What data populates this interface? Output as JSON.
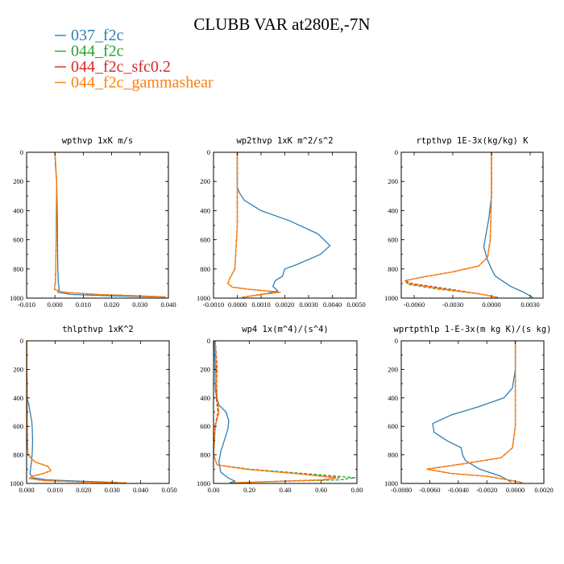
{
  "title": "CLUBB VAR at280E,-7N",
  "legend": [
    {
      "label": "037_f2c",
      "color": "#2e7fb5",
      "dash": "solid"
    },
    {
      "label": "044_f2c",
      "color": "#2ca02c",
      "dash": "dashed"
    },
    {
      "label": "044_f2c_sfc0.2",
      "color": "#d62728",
      "dash": "dashed"
    },
    {
      "label": "044_f2c_gammashear",
      "color": "#ff7f0e",
      "dash": "solid"
    }
  ],
  "chart_data": [
    {
      "type": "line",
      "title": "wpthvp  1xK m/s",
      "xlim": [
        -0.01,
        0.04
      ],
      "ylim": [
        0,
        1000
      ],
      "y_inverted": true,
      "xticks": [
        "-0.010",
        "0.000",
        "0.010",
        "0.020",
        "0.030",
        "0.040"
      ],
      "xtick_values": [
        -0.01,
        0.0,
        0.01,
        0.02,
        0.03,
        0.04
      ],
      "yticks": [
        "0",
        "200",
        "400",
        "600",
        "800",
        "1000"
      ],
      "series": [
        {
          "name": "037_f2c",
          "x": [
            0.0,
            0.0002,
            0.0006,
            0.0008,
            0.0009,
            0.001,
            0.0012,
            0.0015,
            0.001,
            0.006,
            0.02,
            0.038
          ],
          "y": [
            0,
            100,
            200,
            400,
            600,
            800,
            900,
            940,
            960,
            975,
            985,
            992
          ]
        },
        {
          "name": "044_f2c",
          "x": [
            0.0,
            0.0003,
            0.0006,
            0.0005,
            0.0004,
            0.0003,
            0.0001,
            -0.0002,
            0.003,
            0.015,
            0.03,
            0.039
          ],
          "y": [
            0,
            100,
            200,
            400,
            600,
            800,
            900,
            940,
            960,
            975,
            985,
            992
          ]
        },
        {
          "name": "044_f2c_sfc0.2",
          "x": [
            0.0,
            0.0003,
            0.0006,
            0.0005,
            0.0004,
            0.0003,
            0.0001,
            -0.0002,
            0.003,
            0.015,
            0.03,
            0.039
          ],
          "y": [
            0,
            100,
            200,
            400,
            600,
            800,
            900,
            940,
            960,
            975,
            985,
            992
          ]
        },
        {
          "name": "044_f2c_gammashear",
          "x": [
            0.0,
            0.0003,
            0.0006,
            0.0005,
            0.0004,
            0.0003,
            0.0001,
            -0.0002,
            0.003,
            0.015,
            0.03,
            0.039
          ],
          "y": [
            0,
            100,
            200,
            400,
            600,
            800,
            900,
            940,
            960,
            975,
            985,
            992
          ]
        }
      ]
    },
    {
      "type": "line",
      "title": "wp2thvp  1xK m^2/s^2",
      "xlim": [
        -0.001,
        0.005
      ],
      "ylim": [
        0,
        1000
      ],
      "y_inverted": true,
      "xticks": [
        "-0.0010",
        "0.0000",
        "0.0010",
        "0.0020",
        "0.0030",
        "0.0040",
        "0.0050"
      ],
      "xtick_values": [
        -0.001,
        0.0,
        0.001,
        0.002,
        0.003,
        0.004,
        0.005
      ],
      "yticks": [
        "0",
        "200",
        "400",
        "600",
        "800",
        "1000"
      ],
      "series": [
        {
          "name": "037_f2c",
          "x": [
            0.0,
            0.0,
            0.0,
            0.0001,
            0.0003,
            0.001,
            0.0022,
            0.0034,
            0.0039,
            0.0035,
            0.0025,
            0.002,
            0.0019,
            0.0016,
            0.0015,
            0.0017,
            0.0012,
            0.0006,
            0.0002
          ],
          "y": [
            0,
            150,
            240,
            280,
            330,
            400,
            470,
            560,
            640,
            700,
            770,
            800,
            850,
            880,
            920,
            950,
            970,
            985,
            995
          ]
        },
        {
          "name": "044_f2c",
          "x": [
            0.0,
            0.0,
            0.0,
            -0.0001,
            -0.0003,
            -0.0004,
            -0.0002,
            0.0005,
            0.0012,
            0.0018,
            0.001,
            0.0002
          ],
          "y": [
            0,
            200,
            500,
            800,
            860,
            900,
            925,
            940,
            950,
            960,
            975,
            995
          ]
        },
        {
          "name": "044_f2c_sfc0.2",
          "x": [
            0.0,
            0.0,
            0.0,
            -0.0001,
            -0.0003,
            -0.0004,
            -0.0002,
            0.0005,
            0.0012,
            0.0018,
            0.001,
            0.0002
          ],
          "y": [
            0,
            200,
            500,
            800,
            860,
            900,
            925,
            940,
            950,
            960,
            975,
            995
          ]
        },
        {
          "name": "044_f2c_gammashear",
          "x": [
            0.0,
            0.0,
            0.0,
            -0.0001,
            -0.0003,
            -0.0004,
            -0.0002,
            0.0005,
            0.0012,
            0.0018,
            0.001,
            0.0002
          ],
          "y": [
            0,
            200,
            500,
            800,
            860,
            900,
            925,
            940,
            950,
            960,
            975,
            995
          ]
        }
      ]
    },
    {
      "type": "line",
      "title": "rtpthvp  1E-3x(kg/kg) K",
      "xlim": [
        -0.007,
        0.004
      ],
      "ylim": [
        0,
        1000
      ],
      "y_inverted": true,
      "xticks": [
        "-0.0060",
        "-0.0030",
        "0.0000",
        "0.0030"
      ],
      "xtick_values": [
        -0.006,
        -0.003,
        0.0,
        0.003
      ],
      "yticks": [
        "0",
        "200",
        "400",
        "600",
        "800",
        "1000"
      ],
      "series": [
        {
          "name": "037_f2c",
          "x": [
            0.0,
            0.0,
            -0.0002,
            -0.0004,
            -0.0006,
            -0.0003,
            0.0,
            0.0003,
            0.0015,
            0.0025,
            0.0032
          ],
          "y": [
            0,
            300,
            450,
            550,
            650,
            740,
            800,
            850,
            920,
            960,
            995
          ]
        },
        {
          "name": "044_f2c",
          "x": [
            0.0,
            0.0,
            -0.0001,
            -0.0003,
            -0.001,
            -0.003,
            -0.005,
            -0.0067,
            -0.0065,
            -0.004,
            -0.001,
            0.0005
          ],
          "y": [
            0,
            300,
            600,
            720,
            780,
            820,
            850,
            880,
            905,
            940,
            970,
            995
          ]
        },
        {
          "name": "044_f2c_sfc0.2",
          "x": [
            0.0,
            0.0,
            -0.0001,
            -0.0003,
            -0.001,
            -0.003,
            -0.005,
            -0.0067,
            -0.0062,
            -0.0035,
            -0.001,
            0.0005
          ],
          "y": [
            0,
            300,
            600,
            720,
            780,
            820,
            850,
            880,
            900,
            935,
            970,
            995
          ]
        },
        {
          "name": "044_f2c_gammashear",
          "x": [
            0.0,
            0.0,
            -0.0001,
            -0.0003,
            -0.001,
            -0.003,
            -0.005,
            -0.0067,
            -0.0064,
            -0.0038,
            -0.001,
            0.0005
          ],
          "y": [
            0,
            300,
            600,
            720,
            780,
            820,
            850,
            880,
            902,
            938,
            970,
            995
          ]
        }
      ]
    },
    {
      "type": "line",
      "title": "thlpthvp  1xK^2",
      "xlim": [
        0.0,
        0.05
      ],
      "ylim": [
        0,
        1000
      ],
      "y_inverted": true,
      "xticks": [
        "0.000",
        "0.010",
        "0.020",
        "0.030",
        "0.040",
        "0.050"
      ],
      "xtick_values": [
        0.0,
        0.01,
        0.02,
        0.03,
        0.04,
        0.05
      ],
      "yticks": [
        "0",
        "200",
        "400",
        "600",
        "800",
        "1000"
      ],
      "series": [
        {
          "name": "037_f2c",
          "x": [
            0.0001,
            0.0001,
            0.0002,
            0.0008,
            0.0012,
            0.0018,
            0.002,
            0.0021,
            0.002,
            0.0018,
            0.0015,
            0.0012,
            0.002,
            0.007,
            0.02,
            0.032
          ],
          "y": [
            0,
            200,
            400,
            450,
            500,
            560,
            620,
            700,
            780,
            830,
            880,
            930,
            960,
            975,
            985,
            993
          ]
        },
        {
          "name": "044_f2c",
          "x": [
            0.0001,
            0.0001,
            0.0002,
            0.0003,
            0.0005,
            0.003,
            0.0075,
            0.0085,
            0.006,
            0.002,
            0.001,
            0.006,
            0.02,
            0.035
          ],
          "y": [
            0,
            200,
            500,
            700,
            800,
            850,
            880,
            910,
            930,
            950,
            965,
            980,
            990,
            996
          ]
        },
        {
          "name": "044_f2c_sfc0.2",
          "x": [
            0.0001,
            0.0001,
            0.0002,
            0.0003,
            0.0005,
            0.003,
            0.0075,
            0.0085,
            0.006,
            0.002,
            0.001,
            0.006,
            0.02,
            0.035
          ],
          "y": [
            0,
            200,
            500,
            700,
            800,
            850,
            880,
            910,
            930,
            950,
            965,
            980,
            990,
            996
          ]
        },
        {
          "name": "044_f2c_gammashear",
          "x": [
            0.0001,
            0.0001,
            0.0002,
            0.0003,
            0.0005,
            0.003,
            0.0075,
            0.0085,
            0.006,
            0.002,
            0.001,
            0.006,
            0.02,
            0.035
          ],
          "y": [
            0,
            200,
            500,
            700,
            800,
            850,
            880,
            910,
            930,
            950,
            965,
            980,
            990,
            996
          ]
        }
      ]
    },
    {
      "type": "line",
      "title": "wp4  1x(m^4)/(s^4)",
      "xlim": [
        0.0,
        0.8
      ],
      "ylim": [
        0,
        1000
      ],
      "y_inverted": true,
      "xticks": [
        "0.00",
        "0.20",
        "0.40",
        "0.60",
        "0.80"
      ],
      "xtick_values": [
        0.0,
        0.2,
        0.4,
        0.6,
        0.8
      ],
      "yticks": [
        "0",
        "200",
        "400",
        "600",
        "800",
        "1000"
      ],
      "series": [
        {
          "name": "037_f2c",
          "x": [
            0.005,
            0.008,
            0.01,
            0.03,
            0.07,
            0.085,
            0.08,
            0.06,
            0.04,
            0.03,
            0.04,
            0.08,
            0.12,
            0.09
          ],
          "y": [
            0,
            200,
            350,
            450,
            500,
            560,
            620,
            700,
            780,
            850,
            920,
            960,
            985,
            996
          ]
        },
        {
          "name": "044_f2c",
          "x": [
            0.01,
            0.015,
            0.02,
            0.03,
            0.01,
            0.0,
            0.02,
            0.2,
            0.5,
            0.79,
            0.7,
            0.4,
            0.1
          ],
          "y": [
            0,
            200,
            400,
            500,
            600,
            800,
            870,
            900,
            930,
            960,
            975,
            985,
            996
          ]
        },
        {
          "name": "044_f2c_sfc0.2",
          "x": [
            0.01,
            0.02,
            0.015,
            0.025,
            0.008,
            0.0,
            0.02,
            0.18,
            0.45,
            0.7,
            0.6,
            0.35,
            0.1
          ],
          "y": [
            0,
            200,
            400,
            500,
            600,
            800,
            870,
            900,
            930,
            960,
            975,
            985,
            996
          ]
        },
        {
          "name": "044_f2c_gammashear",
          "x": [
            0.01,
            0.015,
            0.02,
            0.03,
            0.01,
            0.0,
            0.02,
            0.18,
            0.45,
            0.68,
            0.62,
            0.38,
            0.1
          ],
          "y": [
            0,
            200,
            400,
            500,
            600,
            800,
            870,
            900,
            930,
            960,
            975,
            985,
            996
          ]
        }
      ]
    },
    {
      "type": "line",
      "title": "wprtpthlp  1-E-3x(m kg K)/(s kg)",
      "xlim": [
        -0.008,
        0.002
      ],
      "ylim": [
        0,
        1000
      ],
      "y_inverted": true,
      "xticks": [
        "-0.0080",
        "-0.0060",
        "-0.0040",
        "-0.0020",
        "0.0000",
        "0.0020"
      ],
      "xtick_values": [
        -0.008,
        -0.006,
        -0.004,
        -0.002,
        0.0,
        0.002
      ],
      "yticks": [
        "0",
        "200",
        "400",
        "600",
        "800",
        "1000"
      ],
      "series": [
        {
          "name": "037_f2c",
          "x": [
            0.0,
            0.0,
            -0.0002,
            -0.0008,
            -0.0025,
            -0.0045,
            -0.0058,
            -0.0057,
            -0.0048,
            -0.0038,
            -0.0037,
            -0.0035,
            -0.0025,
            -0.001,
            -0.0003
          ],
          "y": [
            0,
            200,
            330,
            400,
            460,
            520,
            580,
            640,
            700,
            750,
            800,
            840,
            900,
            950,
            990
          ]
        },
        {
          "name": "044_f2c",
          "x": [
            0.0,
            0.0,
            0.0,
            -0.0002,
            -0.001,
            -0.0035,
            -0.0062,
            -0.0045,
            -0.002,
            -0.0005,
            0.0005
          ],
          "y": [
            0,
            300,
            600,
            750,
            820,
            860,
            900,
            930,
            950,
            975,
            995
          ]
        },
        {
          "name": "044_f2c_sfc0.2",
          "x": [
            0.0,
            0.0,
            0.0,
            -0.0002,
            -0.001,
            -0.0035,
            -0.0062,
            -0.0045,
            -0.002,
            -0.0005,
            0.0005
          ],
          "y": [
            0,
            300,
            600,
            750,
            820,
            860,
            900,
            930,
            950,
            975,
            995
          ]
        },
        {
          "name": "044_f2c_gammashear",
          "x": [
            0.0,
            0.0,
            0.0,
            -0.0002,
            -0.001,
            -0.0035,
            -0.0062,
            -0.0045,
            -0.002,
            -0.0005,
            0.0005
          ],
          "y": [
            0,
            300,
            600,
            750,
            820,
            860,
            900,
            930,
            950,
            975,
            995
          ]
        }
      ]
    }
  ]
}
